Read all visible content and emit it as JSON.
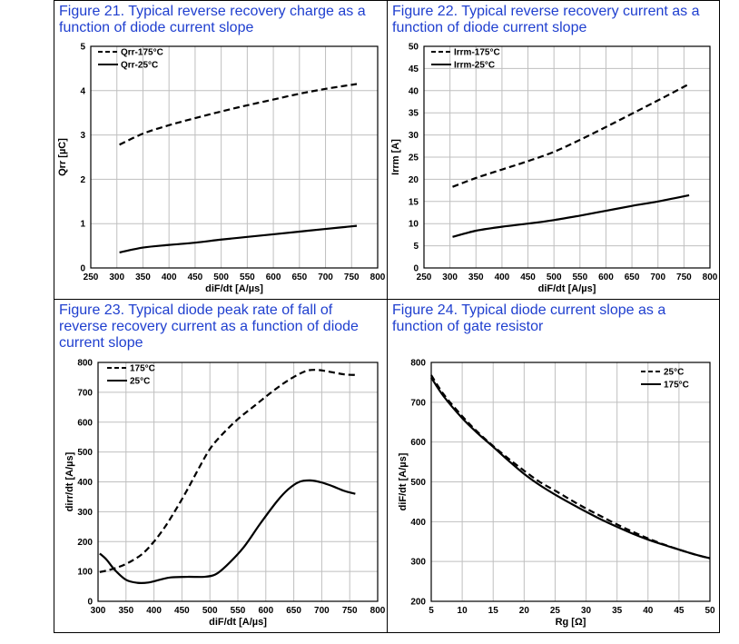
{
  "chart_data": [
    {
      "type": "line",
      "caption": "Figure 21. Typical reverse recovery charge as a function of diode current slope",
      "xlabel": "diF/dt  [A/µs]",
      "ylabel": "Qrr [µC]",
      "xlim": [
        250,
        800
      ],
      "ylim": [
        0,
        5
      ],
      "xticks": [
        250,
        300,
        350,
        400,
        450,
        500,
        550,
        600,
        650,
        700,
        750,
        800
      ],
      "yticks": [
        0,
        1,
        2,
        3,
        4,
        5
      ],
      "grid": true,
      "legend_position": "top-left",
      "series": [
        {
          "name": "Qrr-175°C",
          "dash": "dashed",
          "x": [
            305,
            350,
            400,
            450,
            500,
            550,
            600,
            650,
            700,
            760
          ],
          "y": [
            2.78,
            3.03,
            3.22,
            3.38,
            3.53,
            3.67,
            3.8,
            3.93,
            4.04,
            4.15
          ]
        },
        {
          "name": "Qrr-25°C",
          "dash": "solid",
          "x": [
            305,
            350,
            400,
            450,
            500,
            550,
            600,
            650,
            700,
            760
          ],
          "y": [
            0.35,
            0.46,
            0.52,
            0.57,
            0.64,
            0.7,
            0.76,
            0.82,
            0.88,
            0.95
          ]
        }
      ]
    },
    {
      "type": "line",
      "caption": "Figure 22. Typical reverse recovery current as a function of diode current slope",
      "xlabel": "diF/dt  [A/µs]",
      "ylabel": "Irrm [A]",
      "xlim": [
        250,
        800
      ],
      "ylim": [
        0,
        50
      ],
      "xticks": [
        250,
        300,
        350,
        400,
        450,
        500,
        550,
        600,
        650,
        700,
        750,
        800
      ],
      "yticks": [
        0,
        5,
        10,
        15,
        20,
        25,
        30,
        35,
        40,
        45,
        50
      ],
      "grid": true,
      "legend_position": "top-left",
      "series": [
        {
          "name": "Irrm-175°C",
          "dash": "dashed",
          "x": [
            305,
            350,
            400,
            450,
            500,
            550,
            600,
            650,
            700,
            760
          ],
          "y": [
            18.3,
            20.3,
            22.2,
            24.1,
            26.2,
            28.9,
            31.8,
            34.8,
            37.8,
            41.5
          ]
        },
        {
          "name": "Irrm-25°C",
          "dash": "solid",
          "x": [
            305,
            350,
            400,
            450,
            500,
            550,
            600,
            650,
            700,
            760
          ],
          "y": [
            7.0,
            8.4,
            9.3,
            10.0,
            10.8,
            11.8,
            12.9,
            14.0,
            15.0,
            16.4
          ]
        }
      ]
    },
    {
      "type": "line",
      "caption": "Figure 23. Typical diode peak rate of fall of reverse recovery current as a function of diode current slope",
      "xlabel": "diF/dt  [A/µs]",
      "ylabel": "dirr/dt  [A/µs]",
      "xlim": [
        300,
        800
      ],
      "ylim": [
        0,
        800
      ],
      "xticks": [
        300,
        350,
        400,
        450,
        500,
        550,
        600,
        650,
        700,
        750,
        800
      ],
      "yticks": [
        0,
        100,
        200,
        300,
        400,
        500,
        600,
        700,
        800
      ],
      "grid": true,
      "legend_position": "top-left",
      "series": [
        {
          "name": "175°C",
          "dash": "dashed",
          "x": [
            303,
            320,
            340,
            360,
            380,
            400,
            420,
            440,
            460,
            480,
            500,
            520,
            550,
            580,
            610,
            640,
            670,
            690,
            710,
            740,
            760
          ],
          "y": [
            98,
            105,
            117,
            135,
            160,
            200,
            250,
            310,
            375,
            445,
            510,
            555,
            610,
            655,
            700,
            740,
            770,
            775,
            770,
            760,
            758
          ]
        },
        {
          "name": "25°C",
          "dash": "solid",
          "x": [
            303,
            315,
            330,
            350,
            370,
            390,
            410,
            430,
            460,
            490,
            510,
            530,
            560,
            590,
            620,
            640,
            660,
            680,
            700,
            720,
            740,
            760
          ],
          "y": [
            160,
            140,
            105,
            72,
            62,
            63,
            72,
            80,
            82,
            82,
            90,
            120,
            180,
            260,
            335,
            375,
            400,
            405,
            398,
            385,
            370,
            360
          ]
        }
      ]
    },
    {
      "type": "line",
      "caption": "Figure 24. Typical diode current slope as a function of gate resistor",
      "xlabel": "Rg [Ω]",
      "ylabel": "diF/dt  [A/µs]",
      "xlim": [
        5,
        50
      ],
      "ylim": [
        200,
        800
      ],
      "xticks": [
        5,
        10,
        15,
        20,
        25,
        30,
        35,
        40,
        45,
        50
      ],
      "yticks": [
        200,
        300,
        400,
        500,
        600,
        700,
        800
      ],
      "grid": true,
      "legend_position": "top-right",
      "series": [
        {
          "name": "25°C",
          "dash": "dashed",
          "x": [
            5,
            7,
            10,
            12.5,
            15,
            17.5,
            20,
            22.5,
            25,
            27.5,
            30,
            32.5,
            35,
            37.5,
            40,
            42.5,
            45,
            47.5,
            50
          ],
          "y": [
            768,
            720,
            665,
            625,
            590,
            558,
            528,
            500,
            478,
            455,
            433,
            413,
            393,
            375,
            358,
            343,
            330,
            318,
            308
          ]
        },
        {
          "name": "175°C",
          "dash": "solid",
          "x": [
            5,
            7,
            10,
            12.5,
            15,
            17.5,
            20,
            22.5,
            25,
            27.5,
            30,
            32.5,
            35,
            37.5,
            40,
            42.5,
            45,
            47.5,
            50
          ],
          "y": [
            762,
            715,
            660,
            622,
            588,
            553,
            520,
            492,
            468,
            446,
            425,
            405,
            387,
            370,
            355,
            342,
            330,
            318,
            308
          ]
        }
      ]
    }
  ]
}
